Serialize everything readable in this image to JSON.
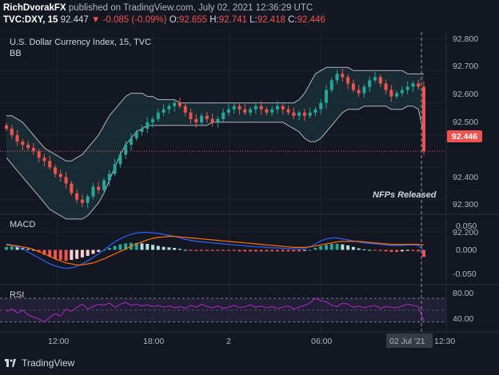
{
  "header": {
    "author": "RichDvorakFX",
    "published_text": "published on TradingView.com, July 02, 2021 12:36:29 UTC",
    "symbol": "TVC:DXY, 15",
    "price": "92.447",
    "change_arrow": "▼",
    "change": "-0.085 (-0.09%)",
    "o_label": "O:",
    "o_value": "92.655",
    "h_label": "H:",
    "h_value": "92.741",
    "l_label": "L:",
    "l_value": "92.418",
    "c_label": "C:",
    "c_value": "92.446"
  },
  "main_pane": {
    "title": "U.S. Dollar Currency Index, 15, TVC",
    "indicator": "BB",
    "annotation": "NFPs Released",
    "current_price_label": "92.446",
    "y_ticks": [
      "92.800",
      "92.700",
      "92.600",
      "92.500",
      "92.400",
      "92.300",
      "92.200"
    ]
  },
  "macd_pane": {
    "title": "MACD",
    "y_ticks": [
      "0.050",
      "0.000",
      "-0.050"
    ]
  },
  "rsi_pane": {
    "title": "RSI",
    "y_ticks": [
      "80.00",
      "40.00"
    ]
  },
  "time_axis": {
    "labels": [
      "12:00",
      "18:00",
      "2",
      "06:00"
    ],
    "current_date": "02 Jul '21",
    "current_time": "12:30"
  },
  "footer": {
    "brand": "TradingView"
  },
  "colors": {
    "background": "#131722",
    "up": "#26a69a",
    "down": "#ef5350",
    "bb_fill": "#1e3a40",
    "macd_line": "#2962ff",
    "signal_line": "#ff6d00",
    "rsi_line": "#9c27b0"
  },
  "chart_data": [
    {
      "type": "candlestick",
      "title": "U.S. Dollar Currency Index, 15, TVC",
      "ylim": [
        92.2,
        92.8
      ],
      "close": [
        92.52,
        92.5,
        92.48,
        92.47,
        92.46,
        92.45,
        92.43,
        92.42,
        92.4,
        92.38,
        92.37,
        92.35,
        92.32,
        92.3,
        92.29,
        92.31,
        92.34,
        92.33,
        92.36,
        92.38,
        92.41,
        92.44,
        92.47,
        92.49,
        92.51,
        92.52,
        92.54,
        92.55,
        92.57,
        92.58,
        92.59,
        92.6,
        92.59,
        92.57,
        92.55,
        92.54,
        92.56,
        92.55,
        92.54,
        92.55,
        92.57,
        92.58,
        92.59,
        92.58,
        92.57,
        92.58,
        92.59,
        92.58,
        92.57,
        92.58,
        92.59,
        92.58,
        92.57,
        92.56,
        92.57,
        92.56,
        92.57,
        92.58,
        92.6,
        92.64,
        92.67,
        92.69,
        92.68,
        92.66,
        92.64,
        92.63,
        92.65,
        92.67,
        92.68,
        92.66,
        92.64,
        92.62,
        92.63,
        92.64,
        92.65,
        92.66,
        92.65,
        92.45
      ],
      "bb_upper": [
        92.56,
        92.56,
        92.55,
        92.54,
        92.52,
        92.5,
        92.48,
        92.46,
        92.45,
        92.44,
        92.43,
        92.42,
        92.42,
        92.43,
        92.44,
        92.46,
        92.48,
        92.5,
        92.53,
        92.56,
        92.58,
        92.6,
        92.62,
        92.63,
        92.63,
        92.63,
        92.62,
        92.62,
        92.61,
        92.61,
        92.61,
        92.61,
        92.6,
        92.6,
        92.6,
        92.6,
        92.6,
        92.6,
        92.6,
        92.6,
        92.6,
        92.6,
        92.6,
        92.6,
        92.6,
        92.6,
        92.6,
        92.6,
        92.6,
        92.6,
        92.6,
        92.6,
        92.6,
        92.6,
        92.61,
        92.63,
        92.66,
        92.69,
        92.7,
        92.71,
        92.71,
        92.71,
        92.71,
        92.71,
        92.7,
        92.7,
        92.7,
        92.7,
        92.7,
        92.7,
        92.7,
        92.7,
        92.7,
        92.7,
        92.69,
        92.69,
        92.69,
        92.69
      ],
      "bb_lower": [
        92.43,
        92.41,
        92.39,
        92.37,
        92.35,
        92.33,
        92.31,
        92.29,
        92.27,
        92.26,
        92.25,
        92.24,
        92.24,
        92.24,
        92.24,
        92.25,
        92.27,
        92.29,
        92.32,
        92.36,
        92.4,
        92.44,
        92.47,
        92.49,
        92.51,
        92.52,
        92.53,
        92.53,
        92.53,
        92.53,
        92.53,
        92.53,
        92.53,
        92.53,
        92.53,
        92.53,
        92.53,
        92.53,
        92.54,
        92.54,
        92.54,
        92.54,
        92.54,
        92.54,
        92.54,
        92.54,
        92.54,
        92.54,
        92.54,
        92.54,
        92.54,
        92.54,
        92.53,
        92.52,
        92.51,
        92.49,
        92.48,
        92.48,
        92.49,
        92.51,
        92.53,
        92.55,
        92.57,
        92.58,
        92.58,
        92.58,
        92.59,
        92.59,
        92.59,
        92.59,
        92.59,
        92.58,
        92.58,
        92.58,
        92.59,
        92.59,
        92.58,
        92.5
      ]
    },
    {
      "type": "bar",
      "title": "MACD",
      "ylim": [
        -0.06,
        0.06
      ],
      "histogram": [
        0.006,
        0.007,
        0.006,
        0.004,
        0.002,
        0.0,
        -0.005,
        -0.01,
        -0.014,
        -0.018,
        -0.02,
        -0.022,
        -0.02,
        -0.018,
        -0.015,
        -0.012,
        -0.008,
        -0.004,
        0.0,
        0.004,
        0.008,
        0.011,
        0.013,
        0.014,
        0.014,
        0.013,
        0.012,
        0.01,
        0.008,
        0.006,
        0.005,
        0.004,
        0.002,
        0.0,
        -0.002,
        -0.002,
        -0.002,
        -0.002,
        -0.002,
        -0.002,
        -0.002,
        -0.002,
        -0.002,
        -0.003,
        -0.003,
        -0.003,
        -0.003,
        -0.003,
        -0.003,
        -0.003,
        -0.003,
        -0.003,
        -0.003,
        -0.003,
        -0.003,
        -0.002,
        0.0,
        0.004,
        0.008,
        0.01,
        0.012,
        0.012,
        0.011,
        0.009,
        0.006,
        0.003,
        0.001,
        0.0,
        -0.001,
        -0.002,
        -0.003,
        -0.004,
        -0.004,
        -0.003,
        -0.002,
        -0.002,
        -0.003,
        -0.014
      ],
      "macd": [
        0.012,
        0.01,
        0.006,
        0.002,
        -0.004,
        -0.01,
        -0.016,
        -0.022,
        -0.028,
        -0.032,
        -0.035,
        -0.037,
        -0.036,
        -0.033,
        -0.028,
        -0.022,
        -0.015,
        -0.008,
        0.0,
        0.008,
        0.016,
        0.022,
        0.027,
        0.031,
        0.034,
        0.035,
        0.035,
        0.034,
        0.033,
        0.031,
        0.029,
        0.027,
        0.024,
        0.021,
        0.019,
        0.017,
        0.016,
        0.015,
        0.014,
        0.013,
        0.012,
        0.011,
        0.01,
        0.009,
        0.008,
        0.007,
        0.006,
        0.006,
        0.005,
        0.004,
        0.004,
        0.003,
        0.003,
        0.002,
        0.002,
        0.003,
        0.006,
        0.012,
        0.018,
        0.022,
        0.024,
        0.024,
        0.022,
        0.02,
        0.018,
        0.016,
        0.014,
        0.013,
        0.012,
        0.011,
        0.01,
        0.009,
        0.009,
        0.009,
        0.01,
        0.01,
        0.009,
        -0.002
      ],
      "signal": [
        0.01,
        0.009,
        0.008,
        0.006,
        0.004,
        0.001,
        -0.003,
        -0.008,
        -0.013,
        -0.018,
        -0.022,
        -0.026,
        -0.028,
        -0.03,
        -0.03,
        -0.028,
        -0.026,
        -0.022,
        -0.018,
        -0.013,
        -0.008,
        -0.003,
        0.002,
        0.007,
        0.012,
        0.016,
        0.02,
        0.023,
        0.025,
        0.026,
        0.027,
        0.027,
        0.026,
        0.025,
        0.024,
        0.023,
        0.022,
        0.021,
        0.02,
        0.019,
        0.018,
        0.017,
        0.016,
        0.015,
        0.014,
        0.013,
        0.012,
        0.011,
        0.01,
        0.009,
        0.008,
        0.007,
        0.006,
        0.005,
        0.005,
        0.005,
        0.006,
        0.008,
        0.01,
        0.012,
        0.014,
        0.016,
        0.017,
        0.017,
        0.017,
        0.017,
        0.016,
        0.015,
        0.014,
        0.013,
        0.012,
        0.011,
        0.011,
        0.011,
        0.011,
        0.011,
        0.011,
        0.01
      ]
    },
    {
      "type": "line",
      "title": "RSI",
      "ylim": [
        20,
        85
      ],
      "values": [
        48,
        52,
        45,
        50,
        42,
        38,
        35,
        30,
        38,
        44,
        40,
        52,
        48,
        55,
        60,
        52,
        56,
        60,
        58,
        62,
        55,
        60,
        63,
        58,
        60,
        57,
        59,
        56,
        58,
        55,
        57,
        54,
        56,
        53,
        58,
        55,
        60,
        56,
        54,
        57,
        53,
        55,
        58,
        54,
        56,
        59,
        55,
        57,
        54,
        56,
        53,
        55,
        57,
        52,
        55,
        58,
        62,
        70,
        66,
        64,
        58,
        56,
        62,
        60,
        55,
        57,
        54,
        56,
        58,
        53,
        56,
        55,
        54,
        57,
        60,
        58,
        56,
        32
      ]
    }
  ]
}
